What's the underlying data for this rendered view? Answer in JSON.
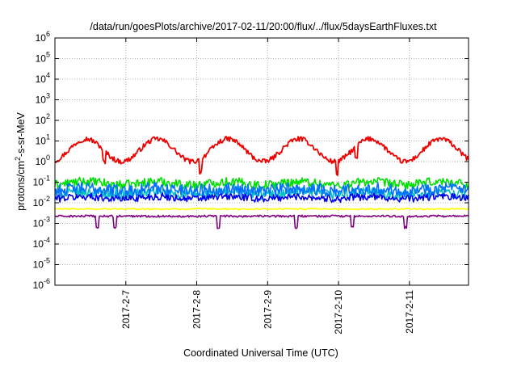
{
  "chart_data": {
    "type": "line",
    "title": "/data/run/goesPlots/archive/2017-02-11/20:00/flux/../flux/5daysEarthFluxes.txt",
    "xlabel": "Coordinated Universal Time (UTC)",
    "ylabel_main": "protons/cm",
    "ylabel_sup": "2",
    "ylabel_rest": "-s-sr-MeV",
    "y_scale": "log",
    "ylim": [
      1e-06,
      1000000.0
    ],
    "y_ticks": [
      {
        "base": "10",
        "exp": "-6"
      },
      {
        "base": "10",
        "exp": "-5"
      },
      {
        "base": "10",
        "exp": "-4"
      },
      {
        "base": "10",
        "exp": "-3"
      },
      {
        "base": "10",
        "exp": "-2"
      },
      {
        "base": "10",
        "exp": "-1"
      },
      {
        "base": "10",
        "exp": "0"
      },
      {
        "base": "10",
        "exp": "1"
      },
      {
        "base": "10",
        "exp": "2"
      },
      {
        "base": "10",
        "exp": "3"
      },
      {
        "base": "10",
        "exp": "4"
      },
      {
        "base": "10",
        "exp": "5"
      },
      {
        "base": "10",
        "exp": "6"
      }
    ],
    "x_start": "2017-02-06 00:00",
    "x_end": "2017-02-11 20:00",
    "x_tick_labels": [
      "2017-2-7",
      "2017-2-8",
      "2017-2-9",
      "2017-2-10",
      "2017-2-11"
    ],
    "grid": true,
    "legend": "none",
    "series": [
      {
        "color": "#ee0000",
        "base_log": 0.55,
        "amp_log": 0.55,
        "noise_log": 0.12,
        "spikes": [
          0.7,
          2.05,
          3.98,
          4.25
        ]
      },
      {
        "color": "#00e000",
        "base_log": -1.05,
        "amp_log": 0.08,
        "noise_log": 0.22,
        "spikes": []
      },
      {
        "color": "#00c0c0",
        "base_log": -1.55,
        "amp_log": 0.05,
        "noise_log": 0.25,
        "spikes": []
      },
      {
        "color": "#0000ee",
        "base_log": -1.75,
        "amp_log": 0.05,
        "noise_log": 0.18,
        "spikes": []
      },
      {
        "color": "#0070ff",
        "base_log": -1.35,
        "amp_log": 0.05,
        "noise_log": 0.3,
        "spikes": []
      },
      {
        "color": "#ffff00",
        "base_log": -2.3,
        "amp_log": 0.0,
        "noise_log": 0.04,
        "spikes": []
      },
      {
        "color": "#800080",
        "base_log": -2.65,
        "amp_log": 0.0,
        "noise_log": 0.05,
        "spikes": [
          0.6,
          0.85,
          2.3,
          3.4,
          4.2,
          4.95
        ]
      }
    ]
  }
}
